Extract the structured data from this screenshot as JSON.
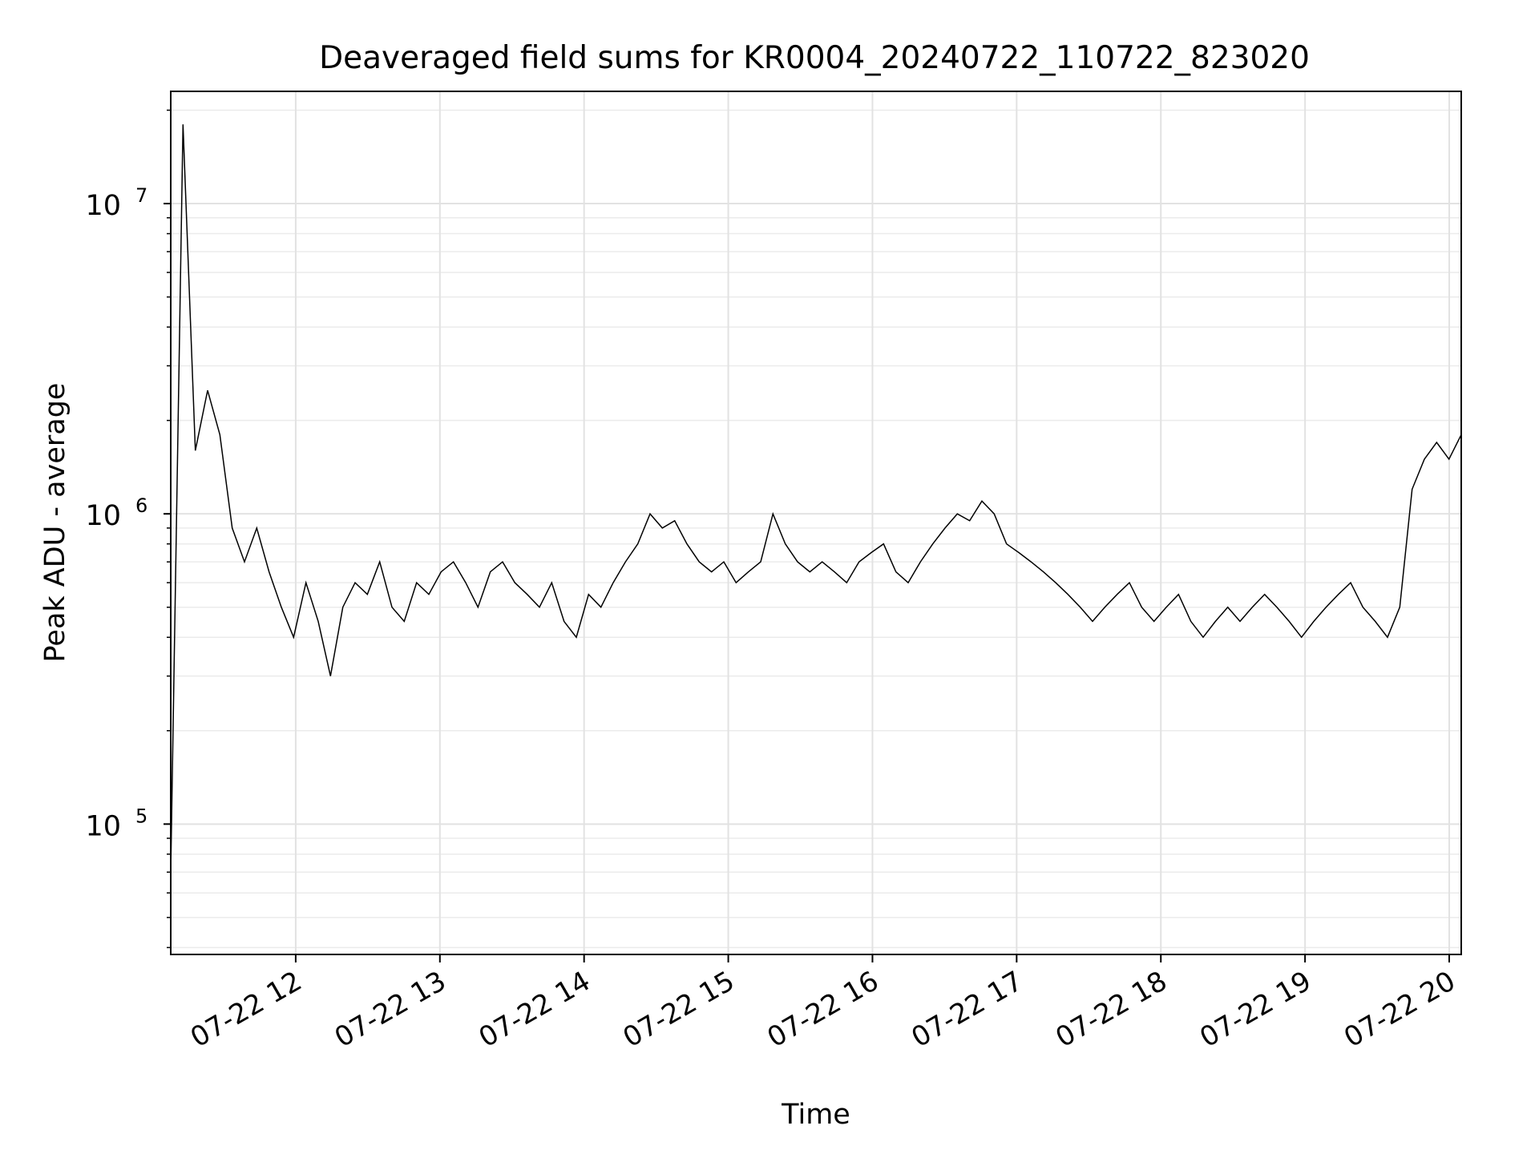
{
  "chart_data": {
    "type": "line",
    "title": "Deaveraged field sums for KR0004_20240722_110722_823020",
    "xlabel": "Time",
    "ylabel": "Peak ADU - average",
    "x_start": "2024-07-22 11:08",
    "x_end": "2024-07-22 20:05",
    "xlim": [
      "2024-07-22 11:08",
      "2024-07-22 20:05"
    ],
    "ylim": [
      38000,
      23000000
    ],
    "yscale": "log",
    "grid": true,
    "x_tick_labels": [
      "07-22 12",
      "07-22 13",
      "07-22 14",
      "07-22 15",
      "07-22 16",
      "07-22 17",
      "07-22 18",
      "07-22 19",
      "07-22 20"
    ],
    "x_tick_hours": [
      12,
      13,
      14,
      15,
      16,
      17,
      18,
      19,
      20
    ],
    "y_tick_labels": [
      {
        "value": 100000,
        "base": "10",
        "exp": "5"
      },
      {
        "value": 1000000,
        "base": "10",
        "exp": "6"
      },
      {
        "value": 10000000,
        "base": "10",
        "exp": "7"
      }
    ],
    "series": [
      {
        "color": "#000000",
        "values": [
          70000,
          18000000,
          1600000,
          2500000,
          1800000,
          900000,
          700000,
          900000,
          650000,
          500000,
          400000,
          600000,
          450000,
          300000,
          500000,
          600000,
          550000,
          700000,
          500000,
          450000,
          600000,
          550000,
          650000,
          700000,
          600000,
          500000,
          650000,
          700000,
          600000,
          550000,
          500000,
          600000,
          450000,
          400000,
          550000,
          500000,
          600000,
          700000,
          800000,
          1000000,
          900000,
          950000,
          800000,
          700000,
          650000,
          700000,
          600000,
          650000,
          700000,
          1000000,
          800000,
          700000,
          650000,
          700000,
          650000,
          600000,
          700000,
          750000,
          800000,
          650000,
          600000,
          700000,
          800000,
          900000,
          1000000,
          950000,
          1100000,
          1000000,
          800000,
          750000,
          700000,
          650000,
          600000,
          550000,
          500000,
          450000,
          500000,
          550000,
          600000,
          500000,
          450000,
          500000,
          550000,
          450000,
          400000,
          450000,
          500000,
          450000,
          500000,
          550000,
          500000,
          450000,
          400000,
          450000,
          500000,
          550000,
          600000,
          500000,
          450000,
          400000,
          500000,
          1200000,
          1500000,
          1700000,
          1500000,
          1800000
        ]
      }
    ]
  }
}
